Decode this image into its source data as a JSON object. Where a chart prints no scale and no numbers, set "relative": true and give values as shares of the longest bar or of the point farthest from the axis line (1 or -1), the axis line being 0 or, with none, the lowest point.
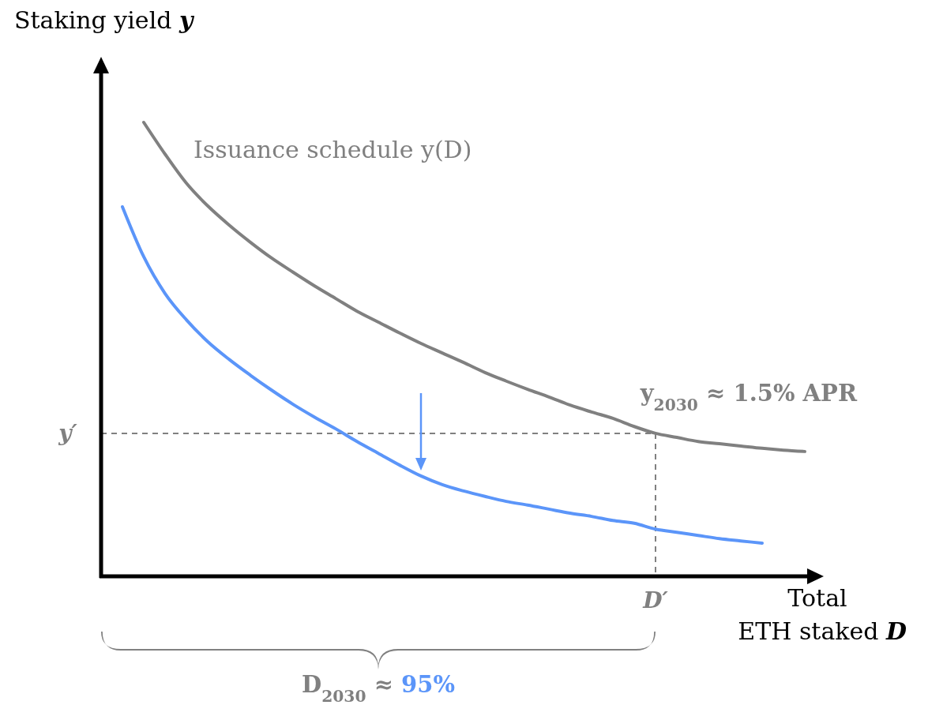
{
  "chart_data": {
    "type": "line",
    "relative": true,
    "xlabel": "Total ETH staked D",
    "ylabel": "Staking yield y",
    "categories": [
      null,
      null,
      null,
      null,
      null,
      null,
      null,
      null,
      null,
      null,
      null,
      null,
      null,
      null,
      null,
      null,
      null,
      null,
      null,
      null,
      null,
      null,
      null,
      null,
      null,
      null,
      null,
      null,
      null,
      null,
      null,
      null,
      null,
      null
    ],
    "series": [
      {
        "name": "Issuance schedule y(D)",
        "color": "#808080",
        "values": [
          null,
          null,
          1.0,
          0.93,
          0.866,
          0.816,
          0.774,
          0.736,
          0.701,
          0.67,
          0.64,
          0.612,
          0.584,
          0.56,
          0.536,
          0.513,
          0.492,
          0.471,
          0.449,
          0.43,
          0.412,
          0.395,
          0.377,
          0.362,
          0.348,
          0.33,
          0.315,
          0.306,
          0.297,
          0.292,
          0.287,
          0.282,
          0.278,
          0.275
        ]
      },
      {
        "color": "#5b95f9",
        "values": [
          null,
          0.814,
          0.704,
          0.623,
          0.565,
          0.517,
          0.478,
          0.443,
          0.41,
          0.379,
          0.351,
          0.325,
          0.297,
          0.271,
          0.245,
          0.221,
          0.202,
          0.188,
          0.176,
          0.165,
          0.157,
          0.148,
          0.139,
          0.132,
          0.123,
          0.117,
          0.104,
          0.097,
          0.09,
          0.083,
          0.078,
          0.073,
          null,
          null
        ]
      }
    ],
    "ref_lines": [
      {
        "axis": "y",
        "value": 0.315,
        "label": "y′",
        "color": "#808080",
        "line_style": "dashed"
      },
      {
        "axis": "x",
        "value": "D′",
        "color": "#808080",
        "line_style": "dashed"
      }
    ],
    "annotations": [
      "y$_{2030}$ ≈ 1.5% APR",
      "D$_{2030}$ ≈ 95%"
    ]
  }
}
